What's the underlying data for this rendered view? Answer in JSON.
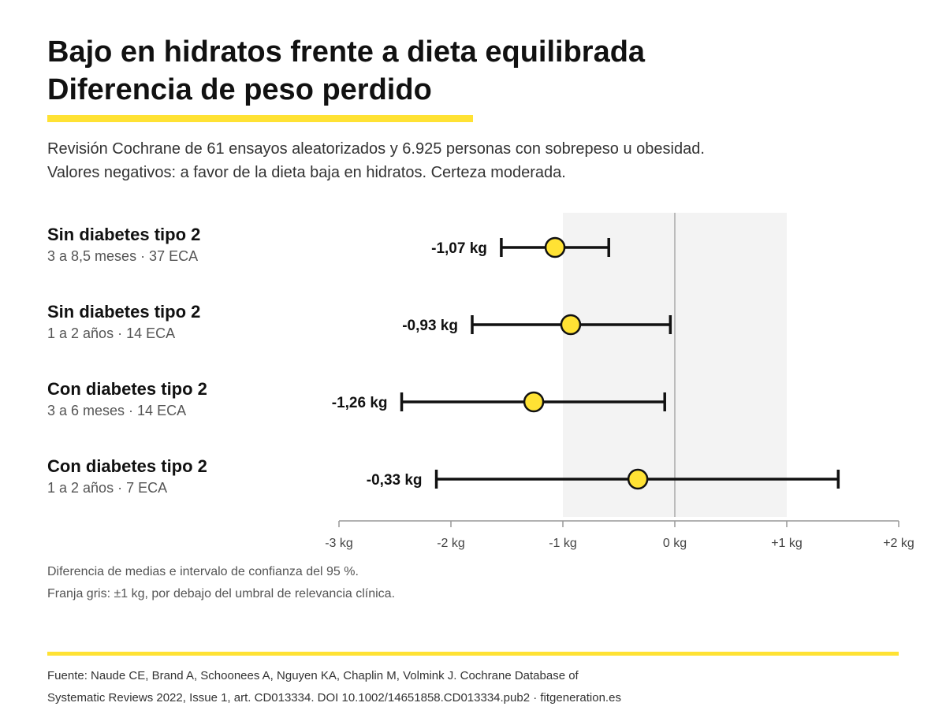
{
  "title_line1": "Bajo en hidratos frente a dieta equilibrada",
  "title_line2": "Diferencia de peso perdido",
  "subtitle_line1": "Revisión Cochrane de 61 ensayos aleatorizados y 6.925 personas con sobrepeso u obesidad.",
  "subtitle_line2": "Valores negativos: a favor de la dieta baja en hidratos. Certeza moderada.",
  "note_line1": "Diferencia de medias e intervalo de confianza del 95 %.",
  "note_line2": "Franja gris: ±1 kg, por debajo del umbral de relevancia clínica.",
  "source_line1": "Fuente: Naude CE, Brand A, Schoonees A, Nguyen KA, Chaplin M, Volmink J. Cochrane Database of",
  "source_line2": "Systematic Reviews 2022, Issue 1, art. CD013334. DOI 10.1002/14651858.CD013334.pub2 · fitgeneration.es",
  "colors": {
    "accent": "#FFE234",
    "marker_fill": "#FFE234",
    "band": "#F3F3F3",
    "zero_line": "#BBBBBB",
    "interval": "#111111"
  },
  "chart_data": {
    "type": "forest",
    "xlim": [
      -3,
      2
    ],
    "ticks": [
      -3,
      -2,
      -1,
      0,
      1,
      2
    ],
    "tick_labels": [
      "-3 kg",
      "-2 kg",
      "-1 kg",
      "0 kg",
      "+1 kg",
      "+2 kg"
    ],
    "band": [
      -1,
      1
    ],
    "reference": 0,
    "rows": [
      {
        "label": "Sin diabetes tipo 2",
        "sub": "3 a 8,5 meses · 37 ECA",
        "estimate": -1.07,
        "lower": -1.55,
        "upper": -0.59,
        "value_label": "-1,07 kg"
      },
      {
        "label": "Sin diabetes tipo 2",
        "sub": "1 a 2 años · 14 ECA",
        "estimate": -0.93,
        "lower": -1.81,
        "upper": -0.04,
        "value_label": "-0,93 kg"
      },
      {
        "label": "Con diabetes tipo 2",
        "sub": "3 a 6 meses · 14 ECA",
        "estimate": -1.26,
        "lower": -2.44,
        "upper": -0.09,
        "value_label": "-1,26 kg"
      },
      {
        "label": "Con diabetes tipo 2",
        "sub": "1 a 2 años · 7 ECA",
        "estimate": -0.33,
        "lower": -2.13,
        "upper": 1.46,
        "value_label": "-0,33 kg"
      }
    ]
  }
}
